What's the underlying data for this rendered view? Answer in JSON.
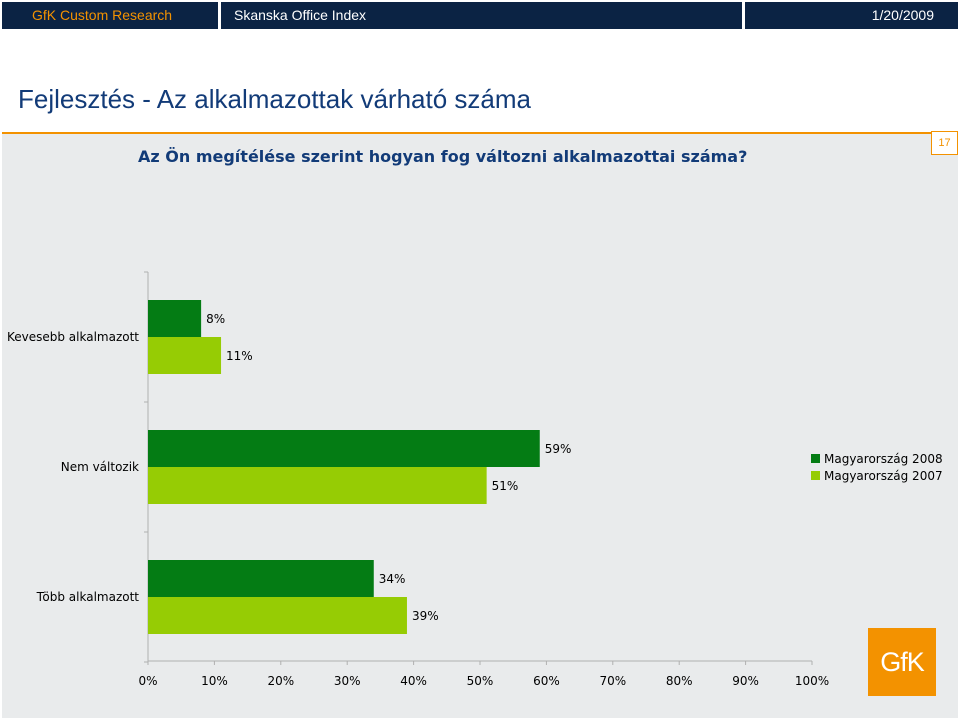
{
  "header": {
    "left": "GfK Custom Research",
    "middle": "Skanska Office Index",
    "date": "1/20/2009"
  },
  "title": "Fejlesztés - Az alkalmazottak várható száma",
  "question": "Az Ön megítélése szerint hogyan fog változni alkalmazottai száma?",
  "page_number": "17",
  "logo": {
    "text": "GfK",
    "color": "#f39200"
  },
  "colors": {
    "accent": "#f39200",
    "navy": "#0b2344",
    "title": "#123b78",
    "panel": "#e9ebec"
  },
  "chart_data": {
    "type": "bar",
    "orientation": "horizontal",
    "categories": [
      "Kevesebb alkalmazott",
      "Nem változik",
      "Több alkalmazott"
    ],
    "series": [
      {
        "name": "Magyarország 2008",
        "values": [
          8,
          59,
          34
        ],
        "labels": [
          "8%",
          "59%",
          "34%"
        ],
        "color": "#047c14"
      },
      {
        "name": "Magyarország 2007",
        "values": [
          11,
          51,
          39
        ],
        "labels": [
          "11%",
          "51%",
          "39%"
        ],
        "color": "#96cc04"
      }
    ],
    "xlim": [
      0,
      100
    ],
    "xticks": [
      "0%",
      "10%",
      "20%",
      "30%",
      "40%",
      "50%",
      "60%",
      "70%",
      "80%",
      "90%",
      "100%"
    ],
    "grid": false,
    "legend_position": "right"
  }
}
